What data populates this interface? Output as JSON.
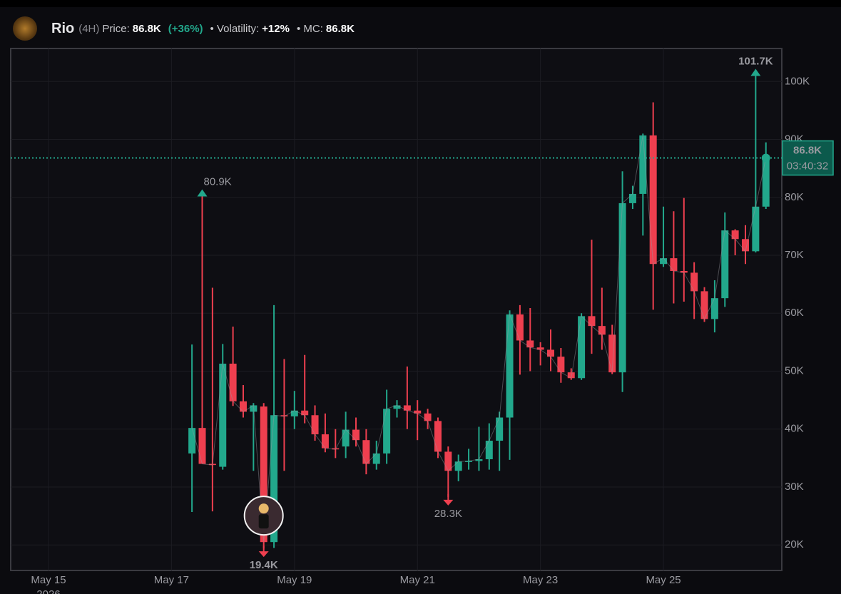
{
  "header": {
    "token": "Rio",
    "interval": "(4H)",
    "price_label": "Price:",
    "price": "86.8K",
    "change": "(+36%)",
    "volatility_label": "• Volatility:",
    "volatility": "+12%",
    "mc_label": "• MC:",
    "mc": "86.8K"
  },
  "chart_data": {
    "type": "candlestick",
    "x": [
      "2026-05-17T08:00",
      "2026-05-17T12:00",
      "2026-05-17T16:00",
      "2026-05-17T20:00",
      "2026-05-18T00:00",
      "2026-05-18T04:00",
      "2026-05-18T08:00",
      "2026-05-18T12:00",
      "2026-05-18T16:00",
      "2026-05-18T20:00",
      "2026-05-19T00:00",
      "2026-05-19T04:00",
      "2026-05-19T08:00",
      "2026-05-19T12:00",
      "2026-05-19T16:00",
      "2026-05-19T20:00",
      "2026-05-20T00:00",
      "2026-05-20T04:00",
      "2026-05-20T08:00",
      "2026-05-20T12:00",
      "2026-05-20T16:00",
      "2026-05-20T20:00",
      "2026-05-21T00:00",
      "2026-05-21T04:00",
      "2026-05-21T08:00",
      "2026-05-21T12:00",
      "2026-05-21T16:00",
      "2026-05-21T20:00",
      "2026-05-22T00:00",
      "2026-05-22T04:00",
      "2026-05-22T08:00",
      "2026-05-22T12:00",
      "2026-05-22T16:00",
      "2026-05-22T20:00",
      "2026-05-23T00:00",
      "2026-05-23T04:00",
      "2026-05-23T08:00",
      "2026-05-23T12:00",
      "2026-05-23T16:00",
      "2026-05-23T20:00",
      "2026-05-24T00:00",
      "2026-05-24T04:00",
      "2026-05-24T08:00",
      "2026-05-24T12:00",
      "2026-05-24T16:00",
      "2026-05-24T20:00",
      "2026-05-25T00:00",
      "2026-05-25T04:00",
      "2026-05-25T08:00",
      "2026-05-25T12:00",
      "2026-05-25T16:00",
      "2026-05-25T20:00",
      "2026-05-26T00:00",
      "2026-05-26T04:00",
      "2026-05-26T08:00",
      "2026-05-26T12:00",
      "2026-05-26T16:00"
    ],
    "open": [
      35800,
      40200,
      34000,
      33500,
      51300,
      44800,
      43000,
      43900,
      20500,
      42400,
      42200,
      43200,
      42400,
      39100,
      36700,
      37000,
      39900,
      38100,
      34000,
      35800,
      43500,
      44100,
      43200,
      42700,
      41400,
      36100,
      32800,
      34400,
      34500,
      34800,
      38000,
      42000,
      59800,
      55300,
      54100,
      53700,
      52500,
      49800,
      48800,
      59500,
      57800,
      56300,
      49800,
      79000,
      80600,
      90700,
      68500,
      69500,
      67300,
      67000,
      63800,
      59000,
      62600,
      74300,
      72800,
      70700,
      78400
    ],
    "high": [
      54600,
      80900,
      64400,
      54700,
      57700,
      47600,
      44500,
      44500,
      61400,
      52100,
      46600,
      52800,
      44100,
      42700,
      40000,
      43000,
      42000,
      40000,
      38000,
      46800,
      45000,
      50800,
      45000,
      43500,
      42000,
      37000,
      35600,
      36600,
      40400,
      41000,
      43000,
      60500,
      61400,
      60900,
      55000,
      57200,
      54000,
      50500,
      60000,
      72700,
      64400,
      58000,
      84500,
      82000,
      91000,
      96400,
      78400,
      77600,
      79900,
      68800,
      64500,
      65700,
      77400,
      74500,
      75200,
      101700,
      89500
    ],
    "low": [
      25700,
      34000,
      25800,
      33000,
      44000,
      42000,
      32800,
      19400,
      19500,
      32800,
      40000,
      41000,
      38000,
      36000,
      35000,
      35000,
      37000,
      32200,
      33000,
      34000,
      42000,
      40000,
      38100,
      40000,
      35000,
      28300,
      31000,
      33000,
      32800,
      33000,
      32800,
      34700,
      49400,
      50000,
      51000,
      50000,
      48000,
      48500,
      48500,
      53000,
      53700,
      49500,
      46400,
      78000,
      73400,
      60600,
      68000,
      61700,
      62000,
      59000,
      58500,
      56700,
      61100,
      70000,
      68500,
      70500,
      78000
    ],
    "close": [
      40200,
      34000,
      33800,
      51300,
      44800,
      43000,
      44100,
      20500,
      42400,
      42200,
      43200,
      42400,
      39100,
      36700,
      36500,
      39900,
      38100,
      34000,
      35800,
      43500,
      44100,
      43200,
      42700,
      41400,
      36100,
      32800,
      34400,
      34500,
      34800,
      38000,
      42000,
      59800,
      55300,
      54100,
      53700,
      52500,
      49800,
      48800,
      59500,
      57800,
      56300,
      49800,
      79000,
      80600,
      90700,
      68500,
      69500,
      67300,
      67000,
      63800,
      59000,
      62600,
      74300,
      72800,
      70700,
      78400,
      86800
    ],
    "up_color": "#22a88c",
    "down_color": "#ee3f4f",
    "xlim": [
      "2026-05-14T09:15",
      "2026-05-26T22:12"
    ],
    "xticks": [
      {
        "value": "2026-05-15T00:00",
        "label": "May 15"
      },
      {
        "value": "2026-05-17T00:00",
        "label": "May 17"
      },
      {
        "value": "2026-05-19T00:00",
        "label": "May 19"
      },
      {
        "value": "2026-05-21T00:00",
        "label": "May 21"
      },
      {
        "value": "2026-05-23T00:00",
        "label": "May 23"
      },
      {
        "value": "2026-05-25T00:00",
        "label": "May 25"
      }
    ],
    "year": "2026",
    "ylim": [
      15600,
      105700
    ],
    "yticks": [
      {
        "value": 20000,
        "label": "20K"
      },
      {
        "value": 30000,
        "label": "30K"
      },
      {
        "value": 40000,
        "label": "40K"
      },
      {
        "value": 50000,
        "label": "50K"
      },
      {
        "value": 60000,
        "label": "60K"
      },
      {
        "value": 70000,
        "label": "70K"
      },
      {
        "value": 80000,
        "label": "80K"
      },
      {
        "value": 90000,
        "label": "90K"
      },
      {
        "value": 100000,
        "label": "100K"
      }
    ],
    "grid": true,
    "annotations": [
      {
        "value": 101700,
        "label": "101.7K"
      },
      {
        "value": 80900,
        "label": "80.9K"
      },
      {
        "value": 19400,
        "label": "19.4K"
      },
      {
        "value": 28300,
        "label": "28.3K"
      }
    ],
    "last_price": {
      "value": 86800,
      "label": "86.8K"
    },
    "countdown": "03:40:32"
  }
}
